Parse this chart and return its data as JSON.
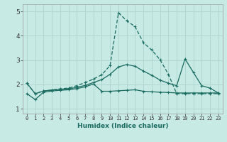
{
  "xlabel": "Humidex (Indice chaleur)",
  "xlim": [
    -0.5,
    23.5
  ],
  "ylim": [
    0.8,
    5.3
  ],
  "yticks": [
    1,
    2,
    3,
    4,
    5
  ],
  "xticks": [
    0,
    1,
    2,
    3,
    4,
    5,
    6,
    7,
    8,
    9,
    10,
    11,
    12,
    13,
    14,
    15,
    16,
    17,
    18,
    19,
    20,
    21,
    22,
    23
  ],
  "bg_color": "#c8eae4",
  "grid_color": "#b0d8d0",
  "line_color": "#1a6b60",
  "line1_x": [
    0,
    1,
    2,
    3,
    4,
    5,
    6,
    7,
    8,
    9,
    10,
    11,
    12,
    13,
    14,
    15,
    16,
    17,
    18,
    19,
    20,
    21,
    22,
    23
  ],
  "line1_y": [
    2.05,
    1.62,
    1.73,
    1.77,
    1.8,
    1.82,
    1.88,
    1.96,
    2.08,
    2.2,
    2.42,
    2.72,
    2.82,
    2.75,
    2.55,
    2.38,
    2.18,
    2.05,
    1.95,
    3.05,
    2.5,
    1.95,
    1.85,
    1.65
  ],
  "line2_x": [
    0,
    1,
    2,
    3,
    4,
    5,
    6,
    7,
    8,
    9,
    10,
    11,
    12,
    13,
    14,
    15,
    16,
    17,
    18,
    19,
    20,
    21,
    22,
    23
  ],
  "line2_y": [
    1.62,
    1.38,
    1.68,
    1.73,
    1.76,
    1.78,
    1.83,
    1.9,
    2.02,
    1.72,
    1.72,
    1.74,
    1.76,
    1.78,
    1.72,
    1.7,
    1.68,
    1.67,
    1.65,
    1.65,
    1.65,
    1.65,
    1.65,
    1.65
  ],
  "line3_x": [
    0,
    1,
    2,
    3,
    4,
    5,
    6,
    7,
    8,
    9,
    10,
    11,
    12,
    13,
    14,
    15,
    16,
    17,
    18,
    19,
    20,
    21,
    22,
    23
  ],
  "line3_y": [
    2.05,
    1.62,
    1.73,
    1.77,
    1.82,
    1.85,
    1.95,
    2.08,
    2.22,
    2.4,
    2.78,
    4.95,
    4.62,
    4.38,
    3.72,
    3.42,
    3.02,
    2.42,
    1.62,
    1.62,
    1.62,
    1.62,
    1.62,
    1.62
  ]
}
